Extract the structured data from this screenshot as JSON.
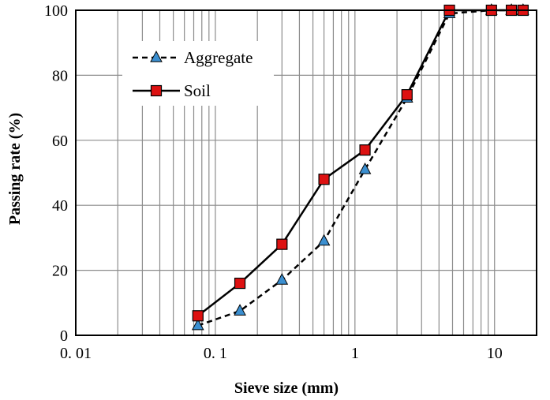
{
  "chart_data": {
    "type": "line",
    "title": "",
    "xlabel": "Sieve size (mm)",
    "ylabel": "Passing rate (%)",
    "xscale": "log",
    "xlim": [
      0.01,
      20
    ],
    "ylim": [
      0,
      100
    ],
    "x_tick_labels": [
      "0. 01",
      "0. 1",
      "1",
      "10"
    ],
    "x_tick_values": [
      0.01,
      0.1,
      1,
      10
    ],
    "y_ticks": [
      0,
      20,
      40,
      60,
      80,
      100
    ],
    "grid": true,
    "legend_position": "top-left",
    "series": [
      {
        "name": "Aggregate",
        "line_style": "dashed",
        "marker": "triangle",
        "marker_color": "#3b8fd0",
        "x": [
          0.075,
          0.15,
          0.3,
          0.6,
          1.18,
          2.36,
          4.75,
          9.5,
          13.2,
          16
        ],
        "y": [
          3,
          7.5,
          17,
          29,
          51,
          73,
          99,
          100,
          100,
          100
        ]
      },
      {
        "name": "Soil",
        "line_style": "solid",
        "marker": "square",
        "marker_color": "#dd1111",
        "x": [
          0.075,
          0.15,
          0.3,
          0.6,
          1.18,
          2.36,
          4.75,
          9.5,
          13.2,
          16
        ],
        "y": [
          6,
          16,
          28,
          48,
          57,
          74,
          100,
          100,
          100,
          100
        ]
      }
    ]
  }
}
